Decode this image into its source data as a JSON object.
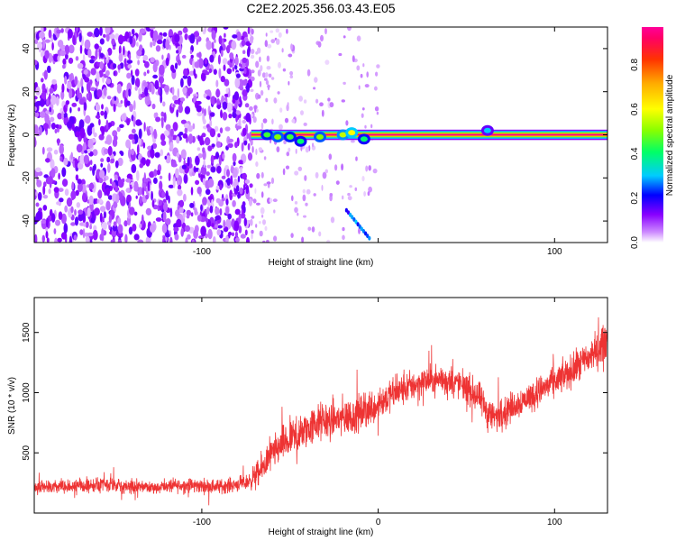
{
  "page": {
    "title": "C2E2.2025.356.03.43.E05"
  },
  "chart_data": [
    {
      "type": "heatmap",
      "xlabel": "Height of straight line (km)",
      "ylabel": "Frequency (Hz)",
      "xlim": [
        -195,
        130
      ],
      "ylim": [
        -50,
        50
      ],
      "x_ticks": [
        -100,
        0,
        100
      ],
      "x_tick_labels": [
        "-100",
        "",
        "100"
      ],
      "y_ticks": [
        -40,
        -20,
        0,
        20,
        40
      ],
      "y_tick_labels": [
        "-40",
        "-20",
        "0",
        "20",
        "40"
      ],
      "grid": false,
      "noise_region": {
        "x_range": [
          -195,
          -72
        ],
        "freq_range": [
          -50,
          50
        ],
        "amplitude": 0.15
      },
      "scattered_noise_region": {
        "x_range": [
          -72,
          0
        ],
        "amplitude": 0.05
      },
      "carrier": {
        "x_range": [
          -72,
          130
        ],
        "frequency_hz": 0,
        "peak_amplitude": 0.95,
        "halfwidth_hz": 2
      },
      "features": [
        {
          "x": -63,
          "freq": 0,
          "amplitude": 0.45
        },
        {
          "x": -57,
          "freq": -1,
          "amplitude": 0.5
        },
        {
          "x": -50,
          "freq": -1,
          "amplitude": 0.45
        },
        {
          "x": -44,
          "freq": -3,
          "amplitude": 0.4
        },
        {
          "x": -33,
          "freq": -1,
          "amplitude": 0.5
        },
        {
          "x": -20,
          "freq": 0,
          "amplitude": 0.55
        },
        {
          "x": -15,
          "freq": 1,
          "amplitude": 0.6
        },
        {
          "x": -8,
          "freq": -2,
          "amplitude": 0.4
        },
        {
          "x": 62,
          "freq": 2,
          "amplitude": 0.3
        }
      ],
      "streak": {
        "x_start": -18,
        "x_end": -5,
        "freq_start": -35,
        "freq_end": -48,
        "amplitude": 0.3
      }
    },
    {
      "type": "colorbar",
      "label": "Normalized spectral amplitude",
      "range": [
        0,
        0.97
      ],
      "ticks": [
        0,
        0.2,
        0.4,
        0.6,
        0.8
      ],
      "tick_labels": [
        "0.0",
        "0.2",
        "0.4",
        "0.6",
        "0.8"
      ],
      "colormap": [
        "#ffffff",
        "#cc88ff",
        "#8800ff",
        "#0000ff",
        "#00ccff",
        "#00ff66",
        "#88ff00",
        "#ffff00",
        "#ffaa00",
        "#ff3300",
        "#ff0066",
        "#ff0099"
      ]
    },
    {
      "type": "line",
      "xlabel": "Height of straight line (km)",
      "ylabel": "SNR (10 * v/v)",
      "xlim": [
        -195,
        130
      ],
      "ylim": [
        0,
        1790
      ],
      "x_ticks": [
        -100,
        0,
        100
      ],
      "x_tick_labels": [
        "-100",
        "0",
        "100"
      ],
      "y_ticks": [
        500,
        1000,
        1500
      ],
      "y_tick_labels": [
        "500",
        "1000",
        "1500"
      ],
      "color": "#ee3333",
      "trend": [
        [
          -195,
          210
        ],
        [
          -160,
          230
        ],
        [
          -130,
          215
        ],
        [
          -110,
          230
        ],
        [
          -90,
          220
        ],
        [
          -75,
          250
        ],
        [
          -68,
          320
        ],
        [
          -62,
          460
        ],
        [
          -55,
          560
        ],
        [
          -45,
          640
        ],
        [
          -35,
          750
        ],
        [
          -25,
          780
        ],
        [
          -15,
          800
        ],
        [
          -5,
          860
        ],
        [
          5,
          960
        ],
        [
          15,
          1030
        ],
        [
          25,
          1090
        ],
        [
          35,
          1110
        ],
        [
          45,
          1080
        ],
        [
          52,
          1020
        ],
        [
          58,
          940
        ],
        [
          62,
          840
        ],
        [
          66,
          800
        ],
        [
          72,
          850
        ],
        [
          80,
          920
        ],
        [
          90,
          1000
        ],
        [
          100,
          1090
        ],
        [
          110,
          1180
        ],
        [
          120,
          1300
        ],
        [
          125,
          1360
        ],
        [
          130,
          1450
        ]
      ],
      "noise_amplitude": [
        [
          -195,
          85
        ],
        [
          -75,
          90
        ],
        [
          -68,
          180
        ],
        [
          -50,
          230
        ],
        [
          -20,
          240
        ],
        [
          10,
          200
        ],
        [
          40,
          170
        ],
        [
          60,
          200
        ],
        [
          80,
          180
        ],
        [
          110,
          200
        ],
        [
          130,
          240
        ]
      ]
    }
  ]
}
